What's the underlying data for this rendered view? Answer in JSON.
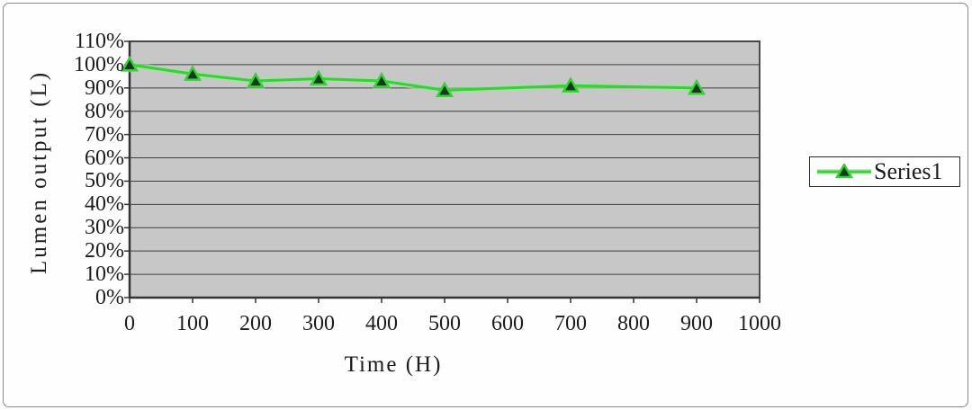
{
  "chart_data": {
    "type": "line",
    "title": "",
    "xlabel": "Time (H)",
    "ylabel": "Lumen output (L)",
    "x": [
      0,
      100,
      200,
      300,
      400,
      500,
      700,
      900
    ],
    "series": [
      {
        "name": "Series1",
        "values": [
          100,
          96,
          93,
          94,
          93,
          89,
          91,
          90
        ]
      }
    ],
    "value_unit": "%",
    "xlim": [
      0,
      1000
    ],
    "ylim": [
      0,
      110
    ],
    "xtick_values": [
      0,
      100,
      200,
      300,
      400,
      500,
      600,
      700,
      800,
      900,
      1000
    ],
    "xtick_labels": [
      "0",
      "100",
      "200",
      "300",
      "400",
      "500",
      "600",
      "700",
      "800",
      "900",
      "1000"
    ],
    "ytick_values": [
      0,
      10,
      20,
      30,
      40,
      50,
      60,
      70,
      80,
      90,
      100,
      110
    ],
    "ytick_labels": [
      "0%",
      "10%",
      "20%",
      "30%",
      "40%",
      "50%",
      "60%",
      "70%",
      "80%",
      "90%",
      "100%",
      "110%"
    ],
    "grid": "horizontal",
    "legend": {
      "position": "right-middle",
      "marker": "triangle"
    },
    "colors": {
      "line": "#3ecb3e",
      "line_glow": "#96e996",
      "marker_fill": "#0d3f15",
      "plot_bg": "#c7c7c7",
      "grid_line": "#3f3f3f",
      "plot_border": "#4d4d4d",
      "axis_line": "#333333",
      "text": "#1c1c1c",
      "legend_bg": "#ffffff",
      "legend_border": "#2a2a2a"
    }
  }
}
